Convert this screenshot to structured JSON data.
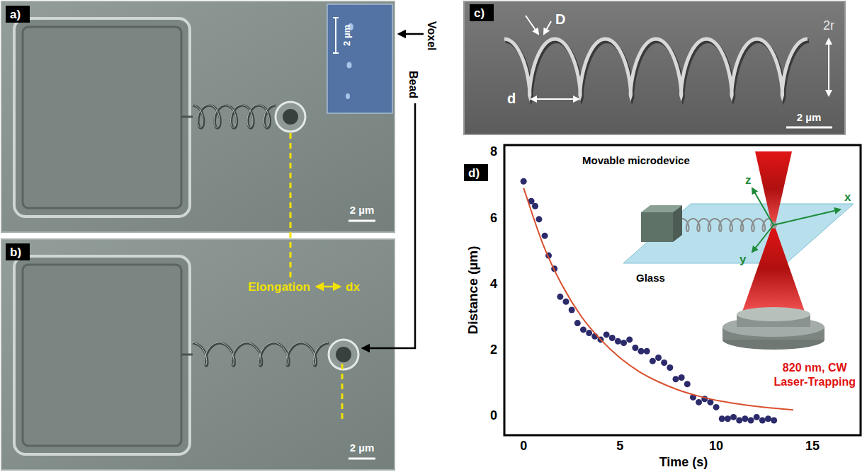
{
  "panels": [
    {
      "label": "a)",
      "scale_bar": "2 µm",
      "inset_scale_bar": "2 µm"
    },
    {
      "label": "b)",
      "scale_bar": "2 µm"
    },
    {
      "label": "c)",
      "scale_bar": "2 µm",
      "dimensions": [
        "D",
        "d",
        "2r"
      ]
    },
    {
      "label": "d)"
    }
  ],
  "annotations": {
    "voxel": "Voxel",
    "bead": "Bead",
    "elongation": "Elongation",
    "dx": "dx"
  },
  "chart_data": {
    "type": "scatter",
    "x_label": "Time (s)",
    "y_label": "Distance (µm)",
    "xlim": [
      -1,
      17.5
    ],
    "ylim": [
      -0.6,
      8.2
    ],
    "xticks": [
      0,
      5,
      10,
      15
    ],
    "yticks": [
      0,
      2,
      4,
      6,
      8
    ],
    "grid": false,
    "series": [
      {
        "type": "scatter",
        "marker": "circle",
        "color": "#2b2a6b",
        "x": [
          0,
          0.4,
          0.6,
          0.8,
          1.1,
          1.3,
          1.6,
          1.9,
          2.2,
          2.5,
          2.8,
          3.1,
          3.4,
          3.7,
          4.0,
          4.3,
          4.6,
          4.9,
          5.2,
          5.5,
          5.8,
          6.1,
          6.4,
          6.7,
          7.0,
          7.3,
          7.6,
          7.9,
          8.2,
          8.5,
          8.8,
          9.1,
          9.4,
          9.7,
          10.0,
          10.3,
          10.6,
          10.9,
          11.2,
          11.5,
          11.8,
          12.1,
          12.4,
          12.7,
          13.0
        ],
        "values": [
          7.1,
          6.5,
          6.35,
          5.95,
          5.45,
          4.85,
          4.45,
          3.6,
          3.45,
          3.2,
          2.8,
          2.6,
          2.5,
          2.4,
          2.3,
          2.45,
          2.35,
          2.25,
          2.2,
          2.3,
          2.05,
          1.95,
          1.95,
          1.65,
          1.75,
          1.6,
          1.45,
          1.1,
          1.15,
          0.95,
          0.55,
          0.4,
          0.5,
          0.4,
          0.25,
          -0.1,
          -0.1,
          -0.05,
          -0.15,
          -0.1,
          -0.15,
          -0.05,
          -0.15,
          -0.1,
          -0.15
        ]
      },
      {
        "type": "line",
        "line_style": "solid",
        "color": "#d9502e",
        "x": [
          0,
          1,
          2,
          3,
          4,
          5,
          6,
          7,
          8,
          9,
          10,
          11,
          12,
          13,
          14
        ],
        "values": [
          6.9,
          5.2,
          3.95,
          3.0,
          2.3,
          1.75,
          1.33,
          1.02,
          0.78,
          0.6,
          0.46,
          0.36,
          0.28,
          0.22,
          0.17
        ]
      }
    ],
    "annotations": {
      "title": "Movable microdevice",
      "plane": "Glass",
      "laser": [
        "820 nm, CW",
        "Laser-Trapping"
      ],
      "axes": [
        "x",
        "y",
        "z"
      ]
    }
  }
}
